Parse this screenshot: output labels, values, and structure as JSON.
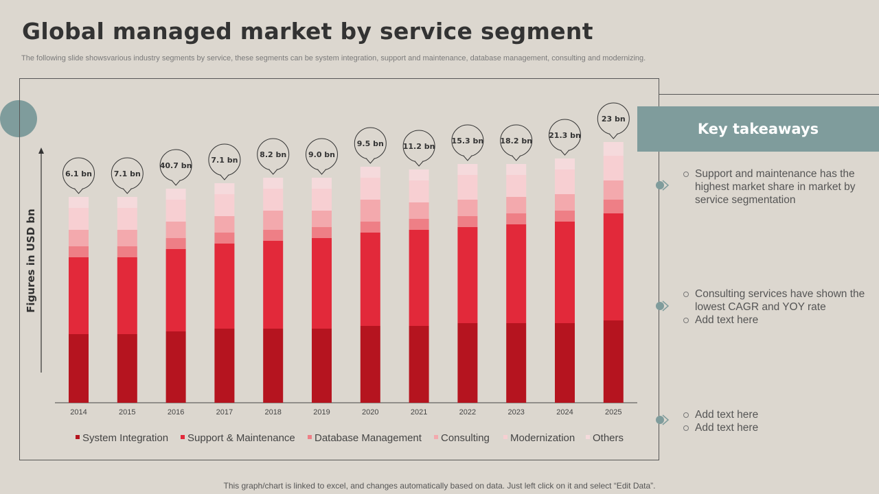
{
  "title": "Global managed market by service segment",
  "subtitle": "The following slide showsvarious industry segments by service, these segments can be system integration, support and maintenance, database management, consulting and modernizing.",
  "key_takeaways": {
    "heading": "Key takeaways",
    "groups": [
      [
        "Support and maintenance has the highest market share in market by service segmentation"
      ],
      [
        "Consulting services have shown the lowest CAGR and YOY rate",
        "Add text here"
      ],
      [
        "Add text here",
        "Add text here"
      ]
    ]
  },
  "footnote": "This graph/chart is linked to excel, and changes automatically based on data.  Just left click on it and select “Edit Data”.",
  "colors": {
    "accent": "#7f9c9c",
    "series": [
      "#b5141f",
      "#e2293a",
      "#ee7f86",
      "#f3a9ad",
      "#f7cfd2",
      "#f5dadc"
    ]
  },
  "chart_data": {
    "type": "bar",
    "stacked": true,
    "title": "",
    "xlabel": "",
    "ylabel": "Figures in USD bn",
    "ylim": [
      0,
      100
    ],
    "categories": [
      "2014",
      "2015",
      "2016",
      "2017",
      "2018",
      "2019",
      "2020",
      "2021",
      "2022",
      "2023",
      "2024",
      "2025"
    ],
    "series": [
      {
        "name": "System Integration",
        "values": [
          25,
          25,
          26,
          27,
          27,
          27,
          28,
          28,
          29,
          29,
          29,
          30
        ]
      },
      {
        "name": "Support & Maintenance",
        "values": [
          28,
          28,
          30,
          31,
          32,
          33,
          34,
          35,
          35,
          36,
          37,
          39
        ]
      },
      {
        "name": "Database Management",
        "values": [
          4,
          4,
          4,
          4,
          4,
          4,
          4,
          4,
          4,
          4,
          4,
          5
        ]
      },
      {
        "name": "Consulting",
        "values": [
          6,
          6,
          6,
          6,
          7,
          6,
          8,
          6,
          6,
          6,
          6,
          7
        ]
      },
      {
        "name": "Modernization",
        "values": [
          8,
          8,
          8,
          8,
          8,
          8,
          8,
          8,
          9,
          8,
          9,
          9
        ]
      },
      {
        "name": "Others",
        "values": [
          4,
          4,
          4,
          4,
          4,
          4,
          4,
          4,
          4,
          4,
          4,
          5
        ]
      }
    ],
    "callouts": [
      "6.1 bn",
      "7.1 bn",
      "40.7 bn",
      "7.1 bn",
      "8.2 bn",
      "9.0 bn",
      "9.5 bn",
      "11.2 bn",
      "15.3 bn",
      "18.2 bn",
      "21.3 bn",
      "23 bn"
    ]
  }
}
